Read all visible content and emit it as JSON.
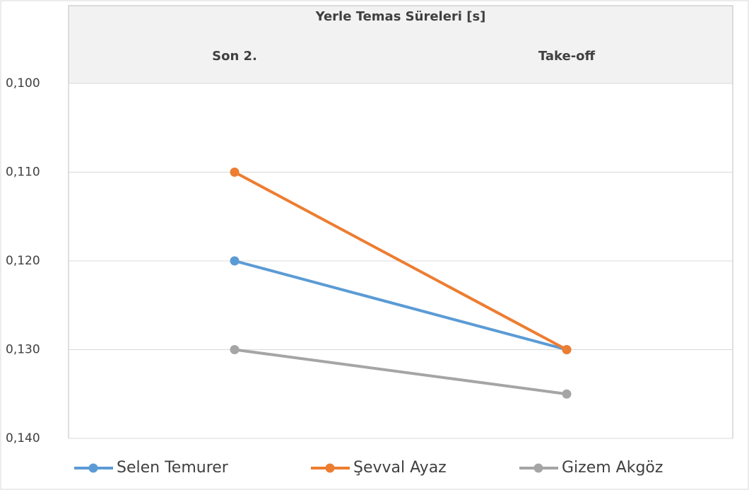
{
  "chart_data": {
    "type": "line",
    "title": "Yerle Temas Süreleri  [s]",
    "categories": [
      "Son 2.",
      "Take-off"
    ],
    "series": [
      {
        "name": "Selen Temurer",
        "color": "#5b9bd5",
        "values": [
          0.12,
          0.13
        ]
      },
      {
        "name": "Şevval Ayaz",
        "color": "#ed7d31",
        "values": [
          0.11,
          0.13
        ]
      },
      {
        "name": "Gizem Akgöz",
        "color": "#a5a5a5",
        "values": [
          0.13,
          0.135
        ]
      }
    ],
    "ylim": [
      0.1,
      0.14
    ],
    "y_reversed": true,
    "yticks": [
      {
        "value": 0.1,
        "label": "0,100"
      },
      {
        "value": 0.11,
        "label": "0,110"
      },
      {
        "value": 0.12,
        "label": "0,120"
      },
      {
        "value": 0.13,
        "label": "0,130"
      },
      {
        "value": 0.14,
        "label": "0,140"
      }
    ],
    "grid": true,
    "legend": "bottom"
  }
}
